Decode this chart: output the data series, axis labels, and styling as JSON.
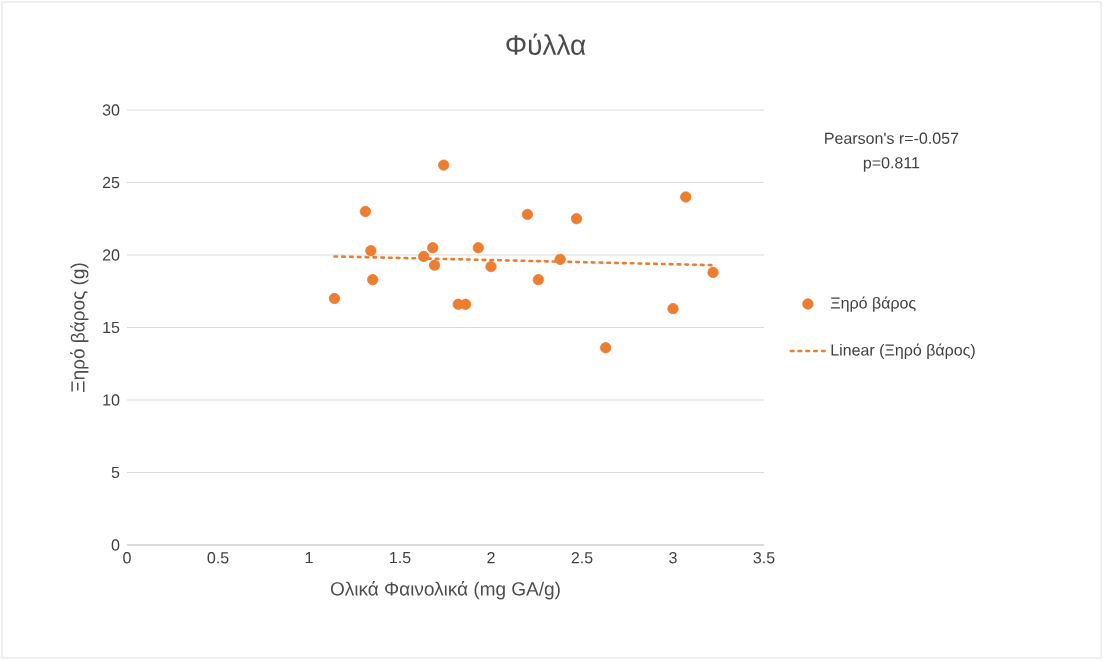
{
  "chart_data": {
    "type": "scatter",
    "title": "Φύλλα",
    "xlabel": "Ολικά Φαινολικά (mg GA/g)",
    "ylabel": "Ξηρό βάρος (g)",
    "xlim": [
      0,
      3.5
    ],
    "xticks": [
      0,
      0.5,
      1,
      1.5,
      2,
      2.5,
      3,
      3.5
    ],
    "ylim": [
      0,
      30
    ],
    "yticks": [
      0,
      5,
      10,
      15,
      20,
      25,
      30
    ],
    "grid": "y",
    "legend": "right",
    "series": [
      {
        "name": "Ξηρό βάρος",
        "color": "#ed7d31",
        "marker": "circle",
        "x": [
          1.14,
          1.31,
          1.34,
          1.35,
          1.63,
          1.68,
          1.69,
          1.74,
          1.82,
          1.86,
          1.93,
          2.0,
          2.2,
          2.26,
          2.38,
          2.47,
          2.63,
          3.0,
          3.07,
          3.22
        ],
        "values": [
          17.0,
          23.0,
          20.3,
          18.3,
          19.9,
          20.5,
          19.3,
          26.2,
          16.6,
          16.6,
          20.5,
          19.2,
          22.8,
          18.3,
          19.7,
          22.5,
          13.6,
          16.3,
          24.0,
          18.8
        ]
      },
      {
        "name": "Linear (Ξηρό βάρος)",
        "type": "line",
        "color": "#ed7d31",
        "line_style": "dotted",
        "marker": "none",
        "x": [
          1.14,
          3.22
        ],
        "values": [
          19.9,
          19.3
        ]
      }
    ],
    "annotations": [
      "Pearson's r=-0.057",
      "p=0.811"
    ]
  }
}
